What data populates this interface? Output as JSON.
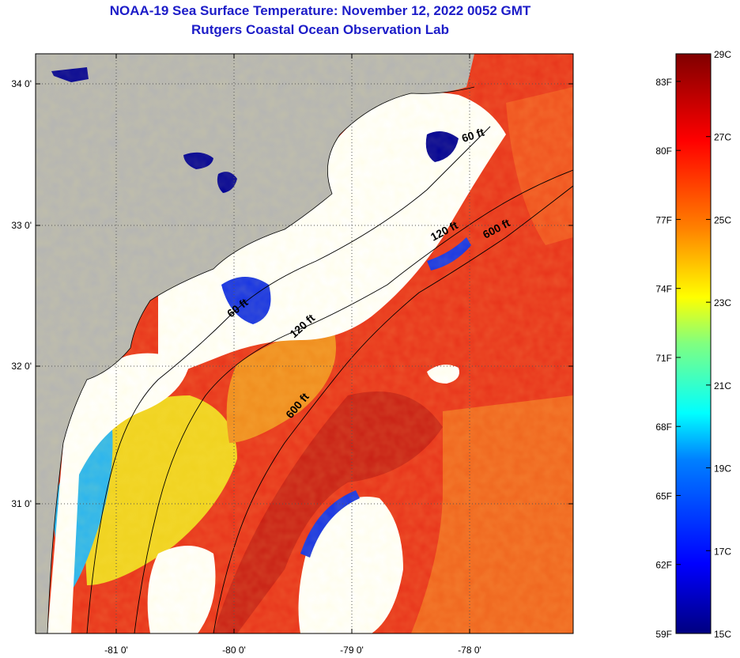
{
  "header": {
    "title": "NOAA-19 Sea Surface Temperature:  November 12, 2022 0052 GMT",
    "subtitle": "Rutgers Coastal Ocean Observation Lab"
  },
  "map": {
    "lon_ticks": [
      "-81 0'",
      "-80 0'",
      "-79 0'",
      "-78 0'"
    ],
    "lat_ticks": [
      "34 0'",
      "33 0'",
      "32 0'",
      "31 0'"
    ],
    "contour_labels": [
      "60 ft",
      "120 ft",
      "600 ft",
      "60 ft",
      "120 ft",
      "600 ft"
    ],
    "colors": {
      "land": "#b4b4b4",
      "cloud": "#ffffff",
      "warm": "#e62814",
      "deep_red": "#c81e14",
      "orange": "#f06e1e",
      "yellow": "#f0e61e",
      "cyan": "#1ec8f0",
      "blue": "#1432e6",
      "navy": "#000096"
    }
  },
  "colorbar": {
    "fahrenheit_labels": [
      "83F",
      "80F",
      "77F",
      "74F",
      "71F",
      "68F",
      "65F",
      "62F",
      "59F"
    ],
    "celsius_labels": [
      "29C",
      "27C",
      "25C",
      "23C",
      "21C",
      "19C",
      "17C",
      "15C"
    ],
    "min_c": 15,
    "max_c": 29
  }
}
